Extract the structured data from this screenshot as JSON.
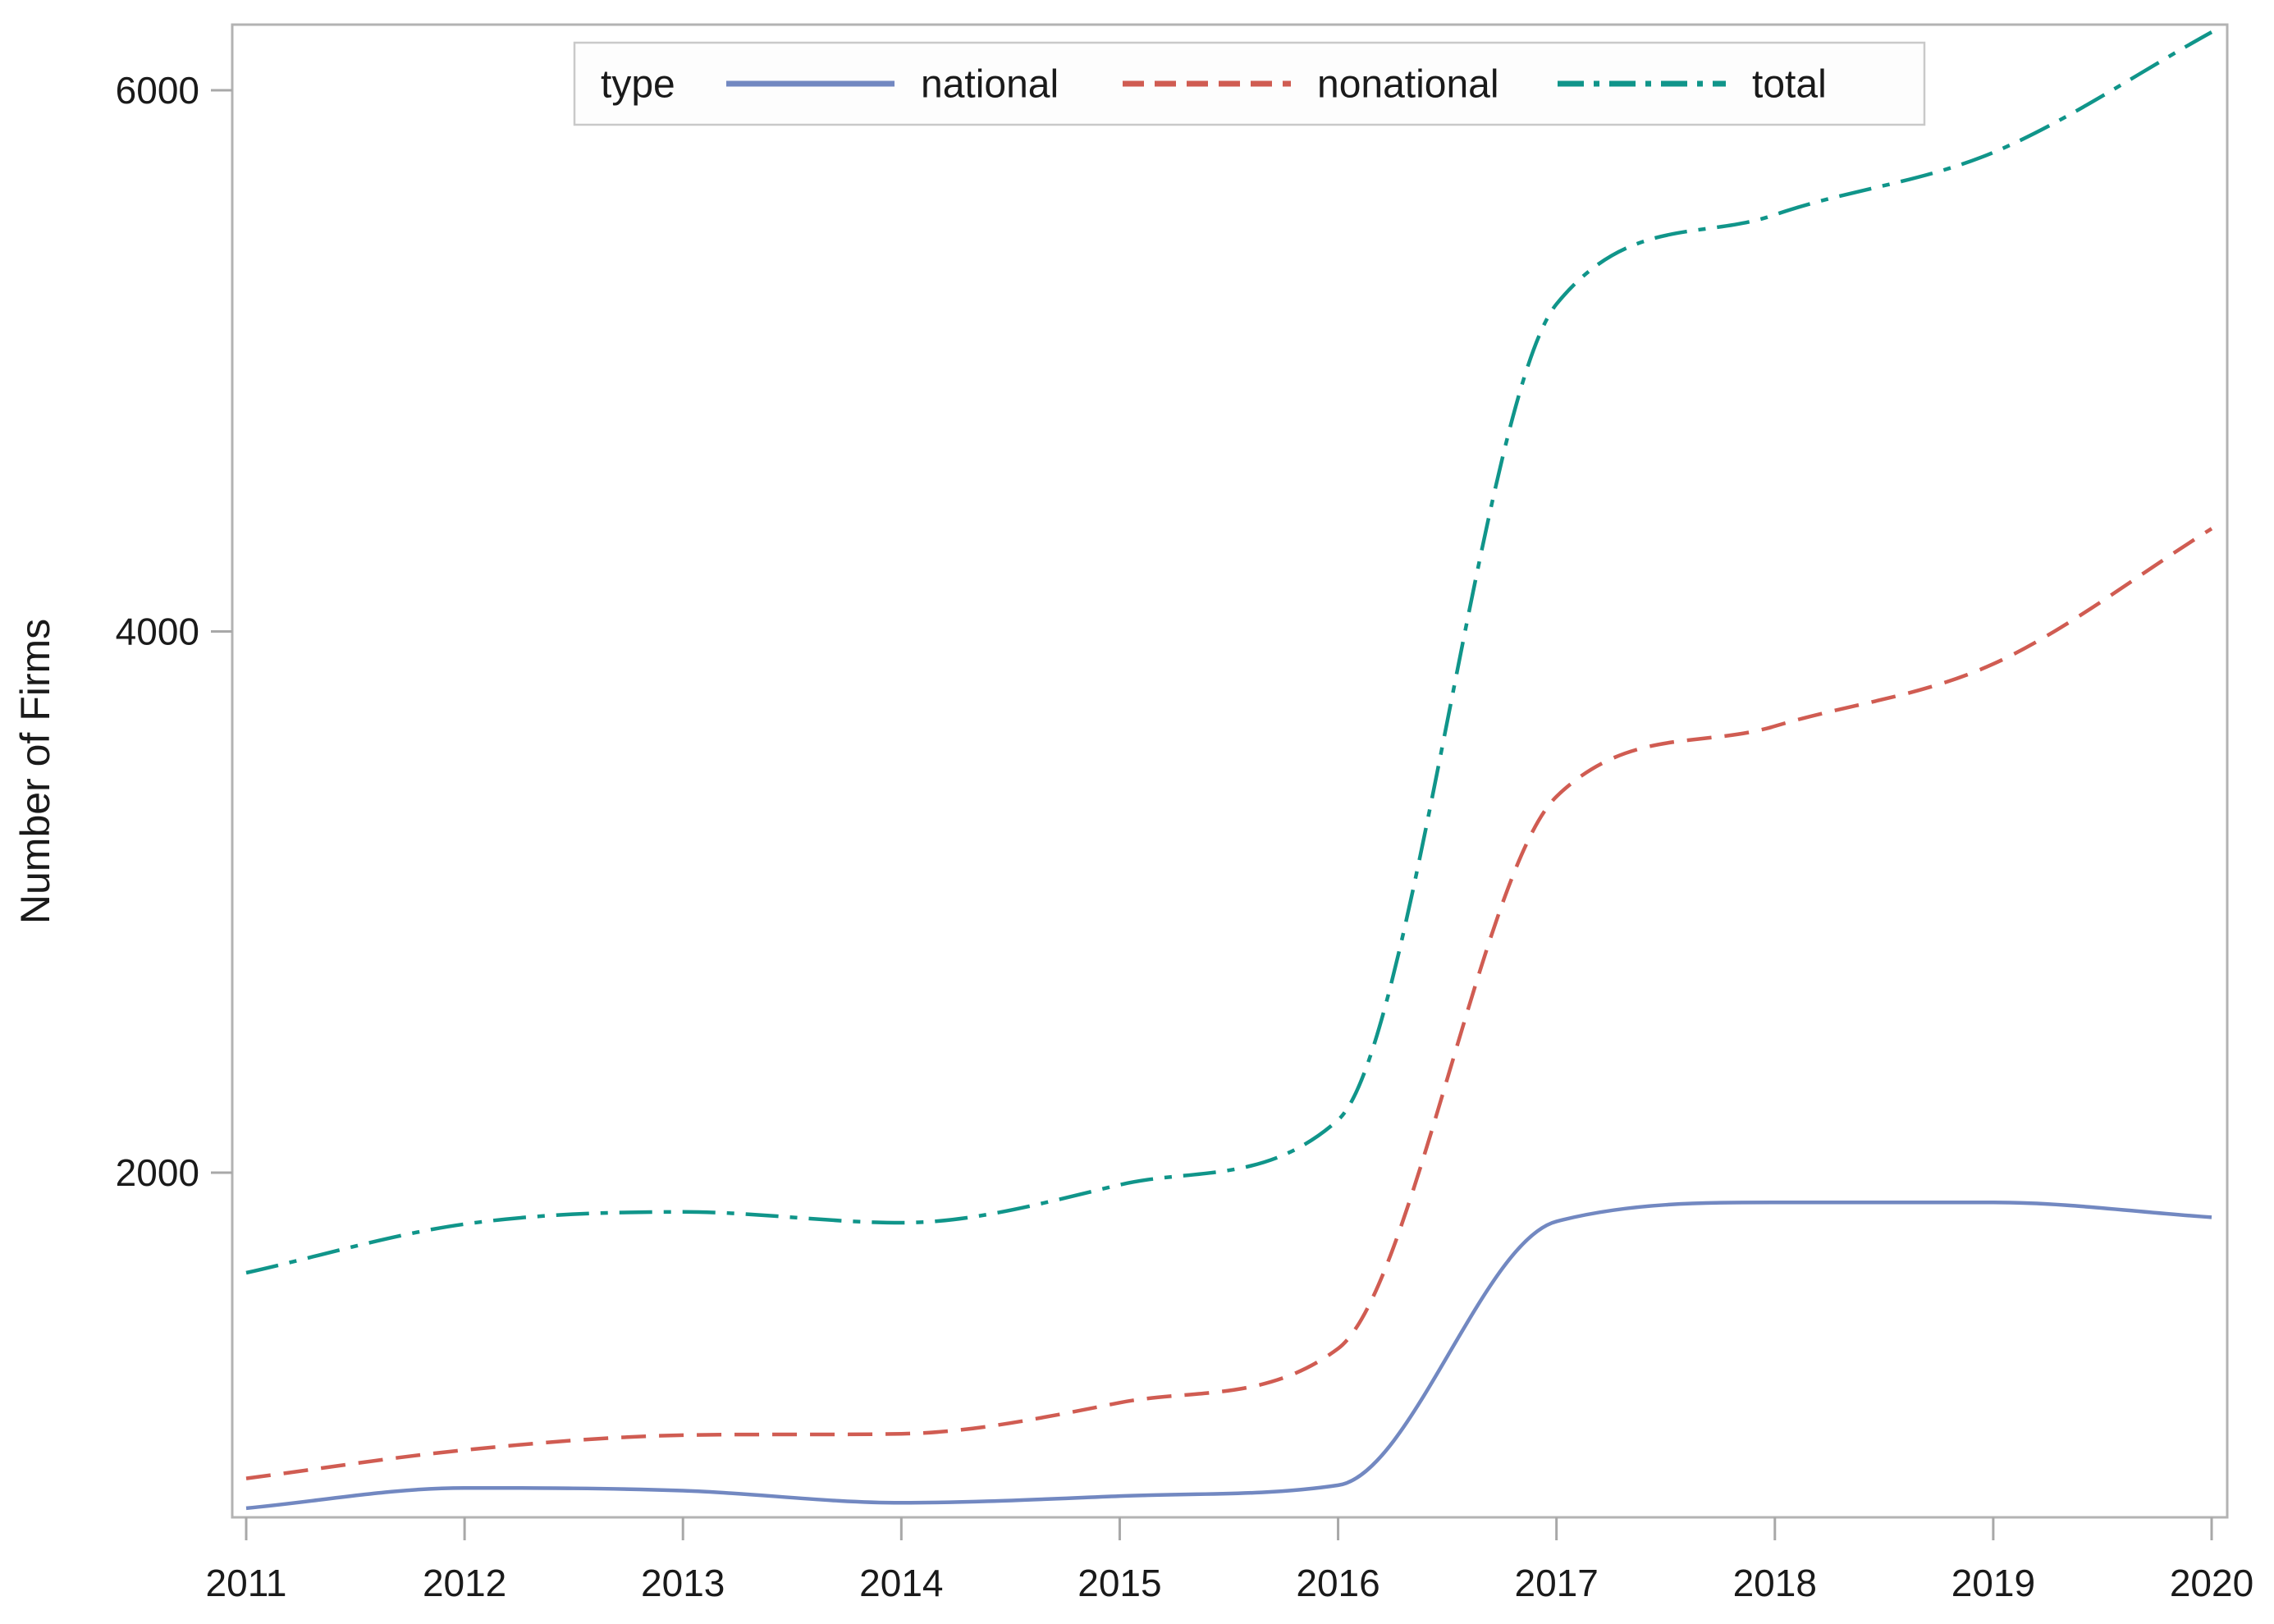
{
  "figure": {
    "background_color": "#ffffff"
  },
  "y_axis": {
    "title": "Number of Firms",
    "tick_labels": [
      "2000",
      "4000",
      "6000"
    ],
    "tick_values": [
      2000,
      4000,
      6000
    ]
  },
  "x_axis": {
    "tick_labels": [
      "2011",
      "2012",
      "2013",
      "2014",
      "2015",
      "2016",
      "2017",
      "2018",
      "2019",
      "2020"
    ],
    "tick_values": [
      2011,
      2012,
      2013,
      2014,
      2015,
      2016,
      2017,
      2018,
      2019,
      2020
    ]
  },
  "legend": {
    "title": "type",
    "entries": [
      {
        "label": "national",
        "color": "#7288c1",
        "line_style": "solid"
      },
      {
        "label": "nonational",
        "color": "#d05c52",
        "line_style": "dashed"
      },
      {
        "label": "total",
        "color": "#10958a",
        "line_style": "dashdot"
      }
    ]
  },
  "chart_data": {
    "type": "line",
    "x": [
      2011,
      2012,
      2013,
      2014,
      2015,
      2016,
      2017,
      2018,
      2019,
      2020
    ],
    "series": [
      {
        "name": "national",
        "color": "#7288c1",
        "line_style": "solid",
        "values": [
          760,
          835,
          825,
          780,
          805,
          845,
          1820,
          1890,
          1890,
          1835
        ]
      },
      {
        "name": "nonational",
        "color": "#d05c52",
        "line_style": "dashed",
        "values": [
          870,
          975,
          1030,
          1035,
          1150,
          1350,
          3390,
          3650,
          3880,
          4380
        ]
      },
      {
        "name": "total",
        "color": "#10958a",
        "line_style": "dashdot",
        "values": [
          1630,
          1810,
          1855,
          1815,
          1955,
          2195,
          5210,
          5540,
          5770,
          6215
        ]
      }
    ],
    "title": "",
    "xlabel": "",
    "ylabel": "Number of Firms",
    "ylim": [
      726,
      6243
    ],
    "xlim": [
      2010.94,
      2020.07
    ],
    "y_ticks": [
      2000,
      4000,
      6000
    ],
    "x_ticks": [
      2011,
      2012,
      2013,
      2014,
      2015,
      2016,
      2017,
      2018,
      2019,
      2020
    ],
    "grid": false,
    "legend_position": "top",
    "curve": "smooth"
  },
  "style": {
    "axis_color": "#b3b3b3",
    "tick_color": "#a8a8a8",
    "tick_label_color": "#1a1a1a",
    "legend_border_color": "#c9c9c9",
    "legend_background": "#fdfdfd"
  }
}
